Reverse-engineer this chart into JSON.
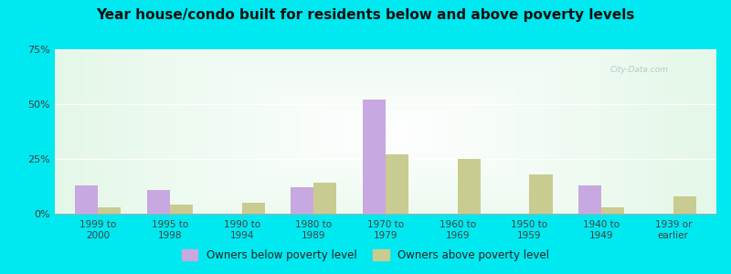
{
  "title": "Year house/condo built for residents below and above poverty levels",
  "categories": [
    "1999 to\n2000",
    "1995 to\n1998",
    "1990 to\n1994",
    "1980 to\n1989",
    "1970 to\n1979",
    "1960 to\n1969",
    "1950 to\n1959",
    "1940 to\n1949",
    "1939 or\nearlier"
  ],
  "below_poverty": [
    13,
    11,
    0,
    12,
    52,
    0,
    0,
    13,
    0
  ],
  "above_poverty": [
    3,
    4,
    5,
    14,
    27,
    25,
    18,
    3,
    8
  ],
  "below_color": "#c8a8e0",
  "above_color": "#c8cc90",
  "ylim": [
    0,
    75
  ],
  "yticks": [
    0,
    25,
    50,
    75
  ],
  "ytick_labels": [
    "0%",
    "25%",
    "50%",
    "75%"
  ],
  "outer_bg": "#00e8f0",
  "legend_below": "Owners below poverty level",
  "legend_above": "Owners above poverty level",
  "bar_width": 0.32
}
